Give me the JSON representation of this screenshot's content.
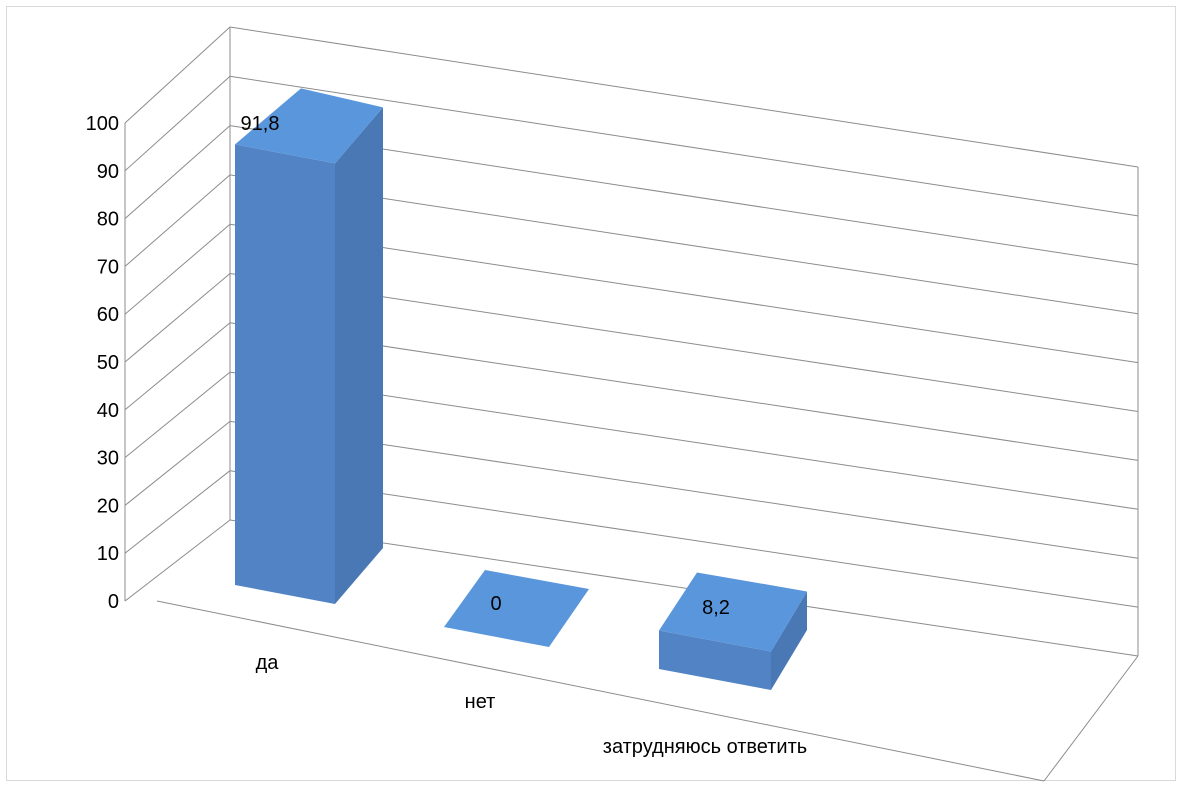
{
  "chart_data": {
    "type": "bar",
    "style": "3d-column",
    "title": "",
    "xlabel": "",
    "ylabel": "",
    "categories": [
      "да",
      "нет",
      "затрудняюсь ответить"
    ],
    "values": [
      91.8,
      0,
      8.2
    ],
    "data_labels": [
      "91,8",
      "0",
      "8,2"
    ],
    "ylim": [
      0,
      100
    ],
    "yticks": [
      0,
      10,
      20,
      30,
      40,
      50,
      60,
      70,
      80,
      90,
      100
    ],
    "ytick_labels": [
      "0",
      "10",
      "20",
      "30",
      "40",
      "50",
      "60",
      "70",
      "80",
      "90",
      "100"
    ],
    "grid": true,
    "legend": "none",
    "colors": {
      "bar_front": "#5283c4",
      "bar_top": "#5a96dc",
      "bar_side": "#4a78b4",
      "grid": "#8c8c8c"
    }
  }
}
